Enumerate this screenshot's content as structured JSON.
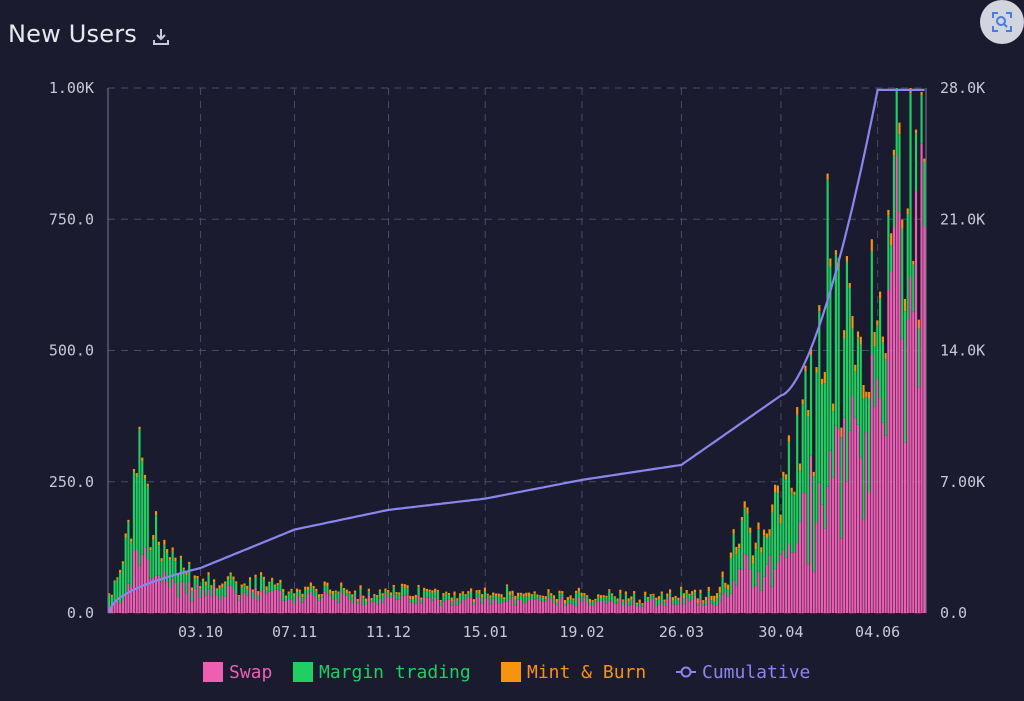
{
  "header": {
    "title": "New Users"
  },
  "colors": {
    "background": "#1b1b30",
    "swap": "#ee5fb4",
    "margin": "#1fcf60",
    "mint": "#f7930f",
    "cumulative": "#8a86ee",
    "grid": "#4a4a62",
    "text": "#c9c9d6"
  },
  "icons": [
    "download-icon",
    "image-search-icon"
  ],
  "chart_data": {
    "type": "bar",
    "stacked": true,
    "title": "New Users",
    "x_ticks": [
      "03.10",
      "07.11",
      "11.12",
      "15.01",
      "19.02",
      "26.03",
      "30.04",
      "04.06"
    ],
    "y_left": {
      "ticks": [
        "0.0",
        "250.0",
        "500.0",
        "750.0",
        "1.00K"
      ],
      "range": [
        0,
        1000
      ]
    },
    "y_right": {
      "ticks": [
        "0.0",
        "7.00K",
        "14.0K",
        "21.0K",
        "28.0K"
      ],
      "range": [
        0,
        28000
      ]
    },
    "grid": true,
    "legend_position": "bottom-center",
    "legend": [
      {
        "name": "Swap",
        "type": "bar",
        "color": "#ee5fb4"
      },
      {
        "name": "Margin trading",
        "type": "bar",
        "color": "#1fcf60"
      },
      {
        "name": "Mint & Burn",
        "type": "bar",
        "color": "#f7930f"
      },
      {
        "name": "Cumulative",
        "type": "line",
        "color": "#8a86ee"
      }
    ],
    "series": [
      {
        "name": "Swap",
        "axis": "left",
        "daily_total_approx_keyframes": [
          [
            0,
            10
          ],
          [
            4,
            25
          ],
          [
            10,
            95
          ],
          [
            14,
            110
          ],
          [
            18,
            60
          ],
          [
            30,
            40
          ],
          [
            70,
            30
          ],
          [
            110,
            25
          ],
          [
            150,
            22
          ],
          [
            200,
            22
          ],
          [
            222,
            25
          ],
          [
            230,
            80
          ],
          [
            236,
            70
          ],
          [
            250,
            140
          ],
          [
            260,
            240
          ],
          [
            268,
            300
          ],
          [
            276,
            400
          ],
          [
            284,
            540
          ],
          [
            290,
            640
          ],
          [
            295,
            600
          ]
        ]
      },
      {
        "name": "Margin trading",
        "axis": "left",
        "daily_total_approx_keyframes": [
          [
            0,
            20
          ],
          [
            4,
            40
          ],
          [
            10,
            130
          ],
          [
            14,
            160
          ],
          [
            18,
            55
          ],
          [
            30,
            20
          ],
          [
            70,
            10
          ],
          [
            110,
            10
          ],
          [
            150,
            8
          ],
          [
            200,
            8
          ],
          [
            222,
            10
          ],
          [
            230,
            80
          ],
          [
            236,
            60
          ],
          [
            250,
            180
          ],
          [
            260,
            250
          ],
          [
            268,
            180
          ],
          [
            276,
            130
          ],
          [
            284,
            120
          ],
          [
            290,
            200
          ],
          [
            295,
            150
          ]
        ]
      },
      {
        "name": "Mint & Burn",
        "axis": "left",
        "daily_total_approx_keyframes": [
          [
            0,
            2
          ],
          [
            10,
            8
          ],
          [
            30,
            5
          ],
          [
            110,
            5
          ],
          [
            200,
            5
          ],
          [
            230,
            10
          ],
          [
            260,
            15
          ],
          [
            284,
            20
          ],
          [
            295,
            10
          ]
        ]
      },
      {
        "name": "Cumulative",
        "axis": "right",
        "x": [
          "start",
          "03.10",
          "07.11",
          "11.12",
          "15.01",
          "19.02",
          "26.03",
          "30.04",
          "04.06"
        ],
        "values": [
          0,
          2400,
          4450,
          5500,
          6100,
          7100,
          7900,
          11600,
          27900
        ]
      }
    ]
  }
}
